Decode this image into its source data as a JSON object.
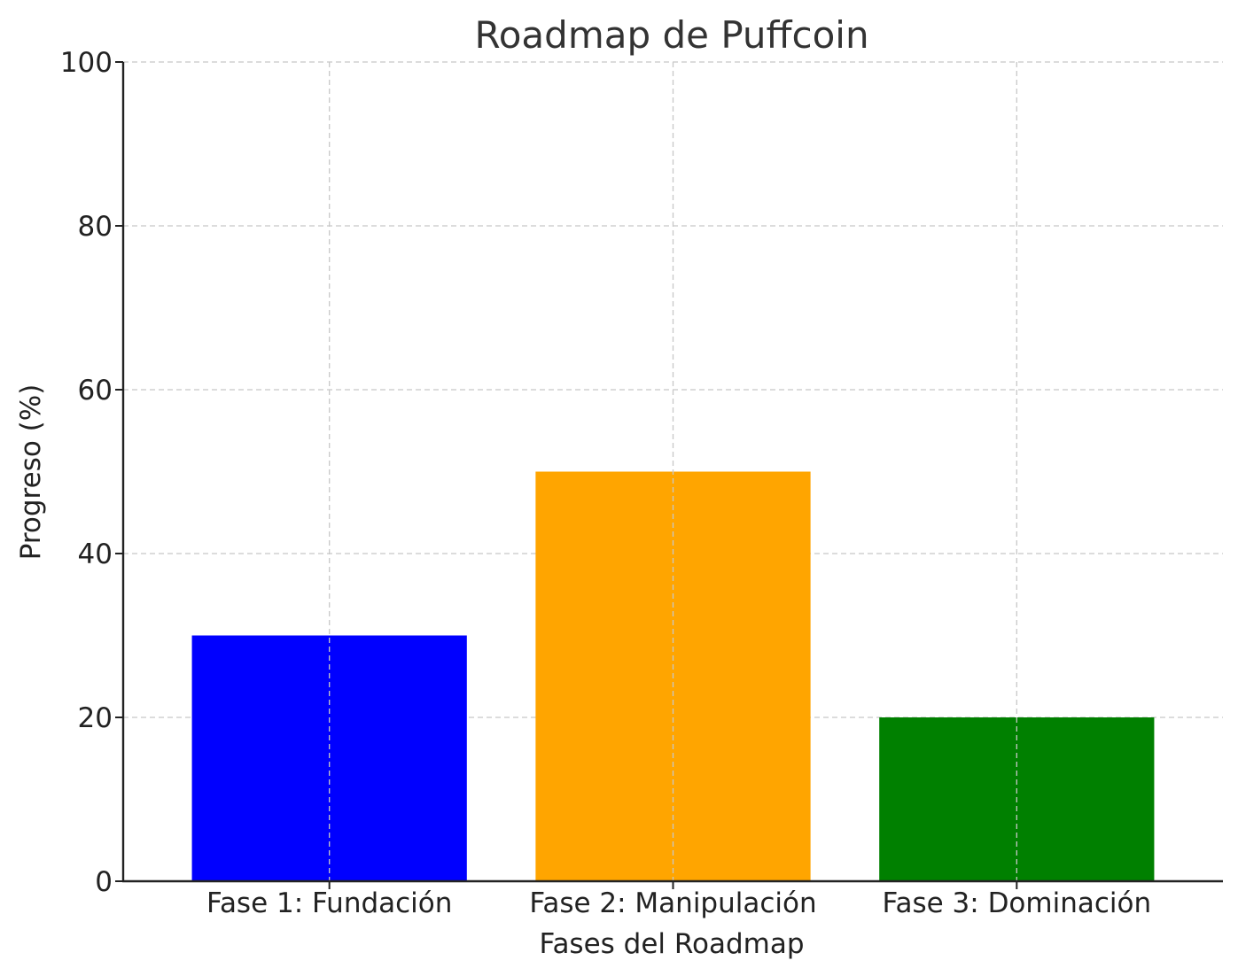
{
  "chart_data": {
    "type": "bar",
    "title": "Roadmap de Puffcoin",
    "xlabel": "Fases del Roadmap",
    "ylabel": "Progreso (%)",
    "categories": [
      "Fase 1: Fundación",
      "Fase 2: Manipulación",
      "Fase 3: Dominación"
    ],
    "values": [
      30,
      50,
      20
    ],
    "colors": [
      "#0000ff",
      "#ffa500",
      "#008000"
    ],
    "ylim": [
      0,
      100
    ],
    "yticks": [
      0,
      20,
      40,
      60,
      80,
      100
    ],
    "grid": true
  }
}
